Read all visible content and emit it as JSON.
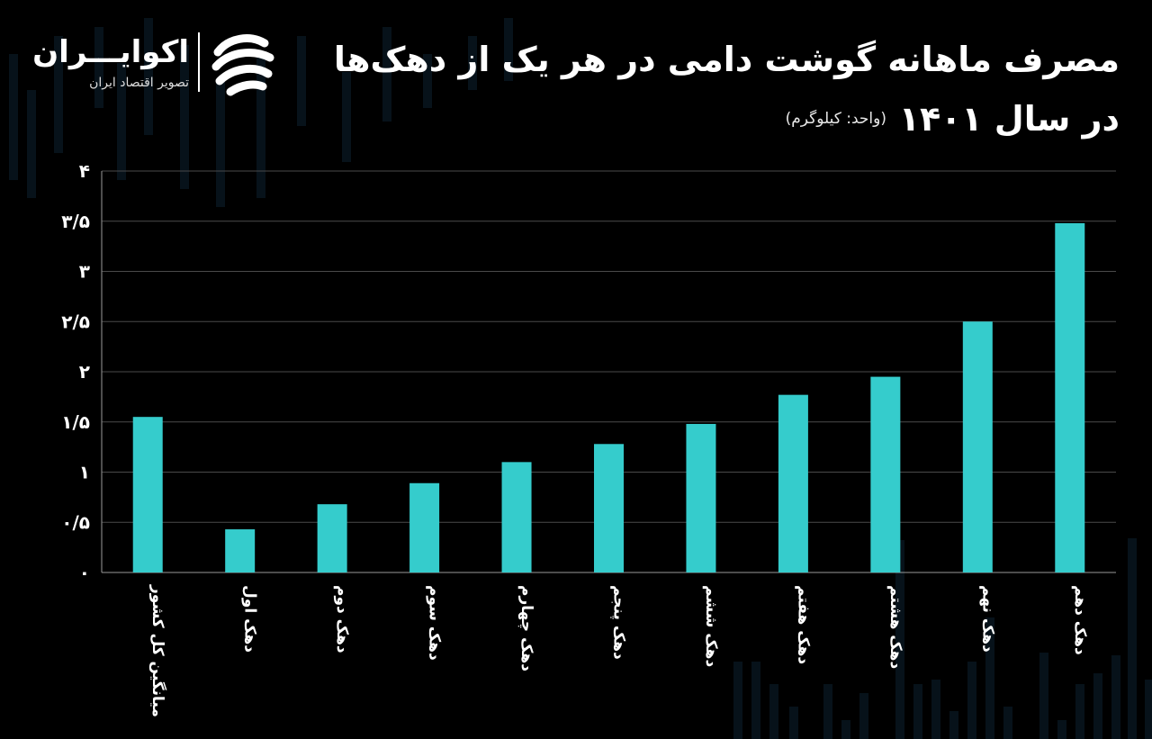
{
  "brand": {
    "name": "اکوایـــران",
    "tagline": "تصویر اقتصاد ایران"
  },
  "header": {
    "title_line1": "مصرف ماهانه گوشت دامی در هر یک از دهک‌ها",
    "title_line2": "در سال ۱۴۰۱",
    "unit_note": "(واحد: کیلوگرم)"
  },
  "colors": {
    "background": "#000000",
    "bar": "#35cccc",
    "grid": "#4a4a4a"
  },
  "chart_data": {
    "type": "bar",
    "title": "مصرف ماهانه گوشت دامی در هر یک از دهک‌ها در سال ۱۴۰۱",
    "unit": "(واحد: کیلوگرم)",
    "categories": [
      "میانگین کل کشور",
      "دهک اول",
      "دهک دوم",
      "دهک سوم",
      "دهک چهارم",
      "دهک پنجم",
      "دهک ششم",
      "دهک هفتم",
      "دهک هشتم",
      "دهک نهم",
      "دهک دهم"
    ],
    "values": [
      1.55,
      0.43,
      0.68,
      0.89,
      1.1,
      1.28,
      1.48,
      1.77,
      1.95,
      2.5,
      3.48
    ],
    "ylim": [
      0,
      4
    ],
    "yticks": [
      0,
      0.5,
      1,
      1.5,
      2,
      2.5,
      3,
      3.5,
      4
    ],
    "ytick_labels": [
      "۰",
      "۰/۵",
      "۱",
      "۱/۵",
      "۲",
      "۲/۵",
      "۳",
      "۳/۵",
      "۴"
    ],
    "xlabel": "",
    "ylabel": "",
    "grid": true,
    "legend": "none"
  }
}
